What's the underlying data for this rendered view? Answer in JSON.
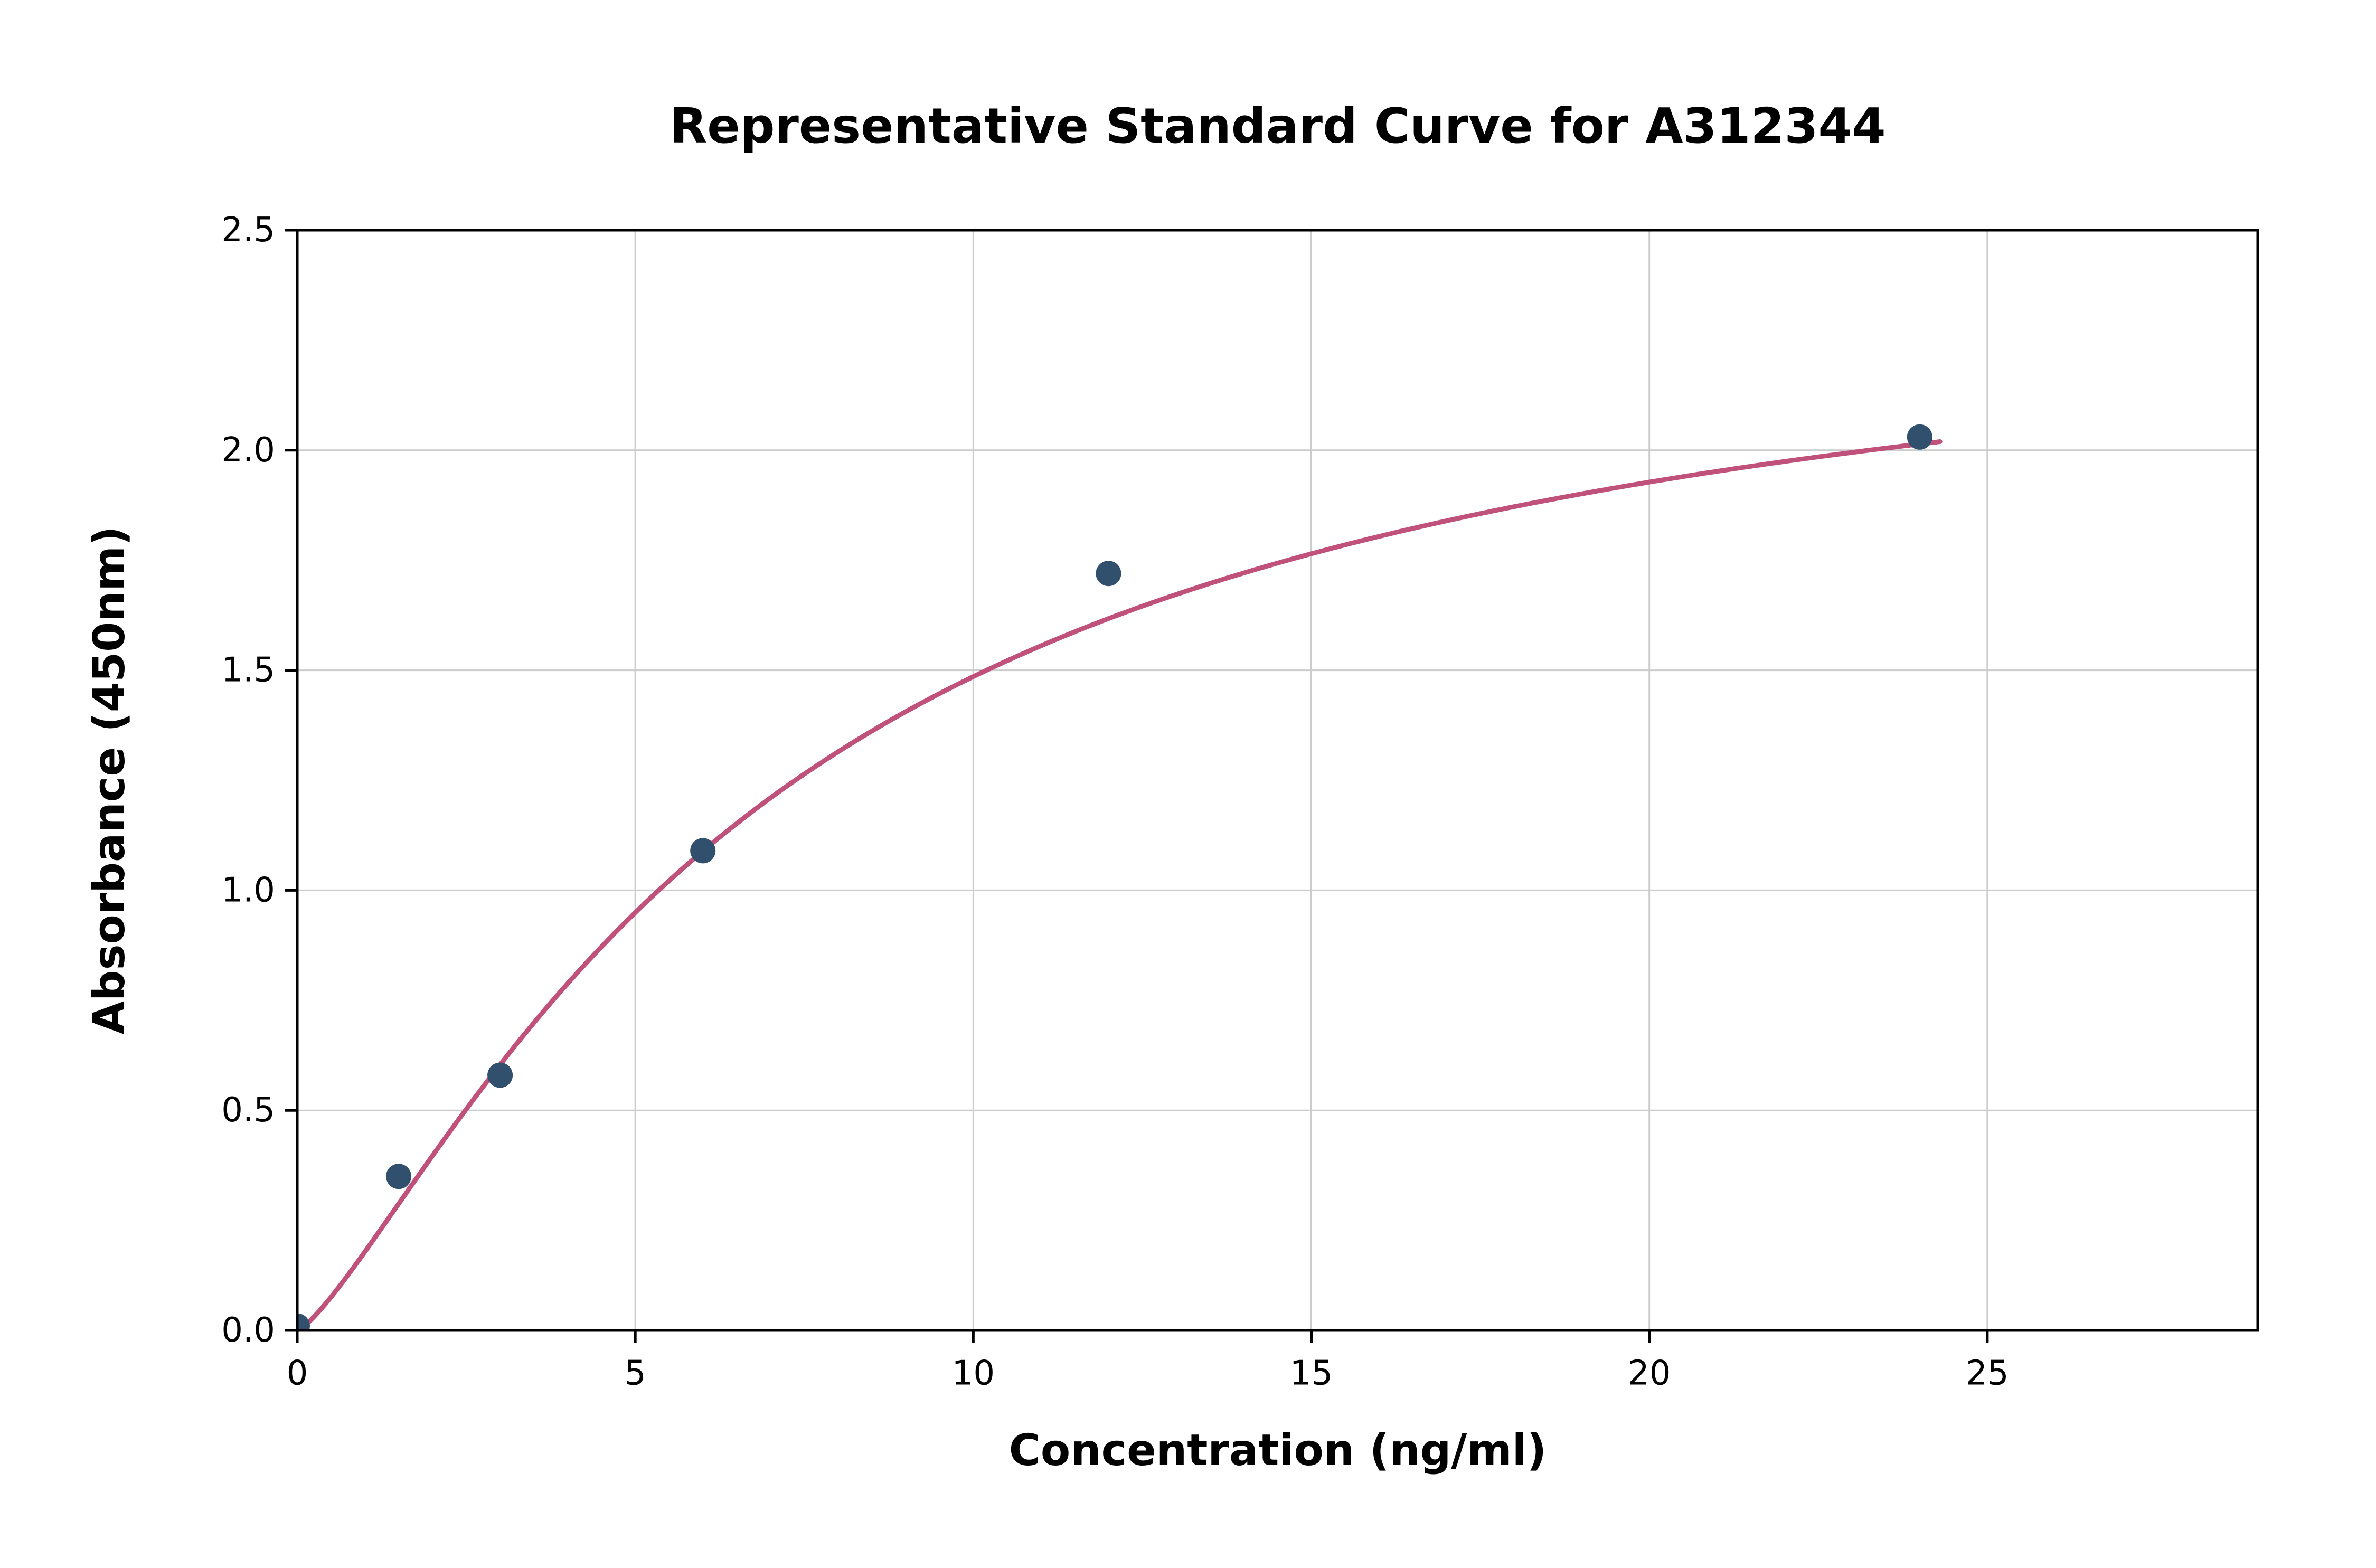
{
  "chart_data": {
    "type": "scatter",
    "title": "Representative Standard Curve for A312344",
    "xlabel": "Concentration (ng/ml)",
    "ylabel": "Absorbance (450nm)",
    "xlim": [
      0,
      29
    ],
    "ylim": [
      0,
      2.5
    ],
    "xtick_values": [
      0,
      5,
      10,
      15,
      20,
      25
    ],
    "xtick_labels": [
      "0",
      "5",
      "10",
      "15",
      "20",
      "25"
    ],
    "ytick_values": [
      0,
      0.5,
      1.0,
      1.5,
      2.0,
      2.5
    ],
    "ytick_labels": [
      "0.0",
      "0.5",
      "1.0",
      "1.5",
      "2.0",
      "2.5"
    ],
    "grid": true,
    "legend": "none",
    "points": [
      {
        "x": 0,
        "y": 0.01
      },
      {
        "x": 1.5,
        "y": 0.35
      },
      {
        "x": 3,
        "y": 0.58
      },
      {
        "x": 6,
        "y": 1.09
      },
      {
        "x": 12,
        "y": 1.72
      },
      {
        "x": 24,
        "y": 2.03
      }
    ],
    "fit_curve": {
      "model": "4PL",
      "params": {
        "a": 0.0,
        "b": 1.3,
        "c": 7.0,
        "d": 2.42
      },
      "x_range": [
        0,
        24.3
      ]
    },
    "colors": {
      "curve": "#c0517a",
      "points": "#31506e",
      "grid": "#cccccc",
      "axis": "#000000",
      "background": "#ffffff"
    }
  }
}
